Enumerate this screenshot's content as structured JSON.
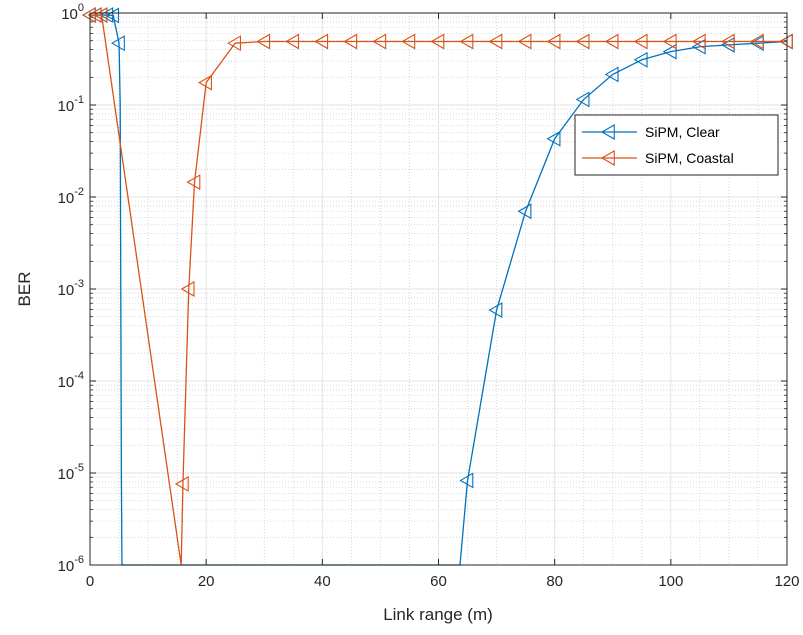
{
  "chart_data": {
    "type": "line",
    "xlabel": "Link range (m)",
    "ylabel": "BER",
    "xlim": [
      0,
      120
    ],
    "ylim": [
      1e-06,
      1
    ],
    "y_scale": "log",
    "grid": true,
    "minor_grid": true,
    "legend_position": "top-right",
    "x_ticks": [
      "0",
      "20",
      "40",
      "60",
      "80",
      "100",
      "120"
    ],
    "y_ticks": [
      {
        "base": "10",
        "exp": "-6"
      },
      {
        "base": "10",
        "exp": "-5"
      },
      {
        "base": "10",
        "exp": "-4"
      },
      {
        "base": "10",
        "exp": "-3"
      },
      {
        "base": "10",
        "exp": "-2"
      },
      {
        "base": "10",
        "exp": "-1"
      },
      {
        "base": "10",
        "exp": "0"
      }
    ],
    "series": [
      {
        "name": "SiPM, Clear",
        "color": "#0072BD",
        "marker": "triangle-left",
        "x": [
          0,
          1,
          2,
          3,
          4,
          5,
          65,
          70,
          75,
          80,
          85,
          90,
          95,
          100,
          105,
          110,
          115,
          120
        ],
        "y": [
          0.95,
          0.95,
          0.95,
          0.95,
          0.94,
          0.47,
          8.3e-06,
          0.00059,
          0.007,
          0.043,
          0.115,
          0.215,
          0.31,
          0.38,
          0.43,
          0.45,
          0.47,
          0.49
        ],
        "line_x": [
          0,
          1,
          2,
          3,
          4,
          5,
          5.2,
          5.3,
          5.4,
          5.5,
          63.7,
          65,
          70,
          75,
          80,
          85,
          90,
          95,
          100,
          105,
          110,
          115,
          120
        ],
        "line_y": [
          0.95,
          0.95,
          0.95,
          0.95,
          0.94,
          0.47,
          0.1,
          0.001,
          1e-05,
          1e-06,
          1e-06,
          8.3e-06,
          0.00059,
          0.007,
          0.043,
          0.115,
          0.215,
          0.31,
          0.38,
          0.43,
          0.45,
          0.47,
          0.49
        ]
      },
      {
        "name": "SiPM, Coastal",
        "color": "#D95319",
        "marker": "triangle-left",
        "x": [
          0,
          1,
          2,
          16,
          17,
          18,
          20,
          25,
          30,
          35,
          40,
          45,
          50,
          55,
          60,
          65,
          70,
          75,
          80,
          85,
          90,
          95,
          100,
          105,
          110,
          115,
          120
        ],
        "y": [
          0.95,
          0.95,
          0.95,
          7.6e-06,
          0.001,
          0.0145,
          0.175,
          0.47,
          0.49,
          0.49,
          0.49,
          0.49,
          0.49,
          0.49,
          0.49,
          0.49,
          0.49,
          0.49,
          0.49,
          0.49,
          0.49,
          0.49,
          0.49,
          0.49,
          0.49,
          0.49,
          0.49
        ],
        "line_x": [
          0,
          1,
          2,
          15.7,
          16,
          17,
          18,
          20,
          25,
          30,
          35,
          40,
          45,
          50,
          55,
          60,
          65,
          70,
          75,
          80,
          85,
          90,
          95,
          100,
          105,
          110,
          115,
          120
        ],
        "line_y": [
          0.95,
          0.95,
          0.95,
          1e-06,
          7.6e-06,
          0.001,
          0.0145,
          0.175,
          0.47,
          0.49,
          0.49,
          0.49,
          0.49,
          0.49,
          0.49,
          0.49,
          0.49,
          0.49,
          0.49,
          0.49,
          0.49,
          0.49,
          0.49,
          0.49,
          0.49,
          0.49,
          0.49,
          0.49
        ]
      }
    ]
  }
}
